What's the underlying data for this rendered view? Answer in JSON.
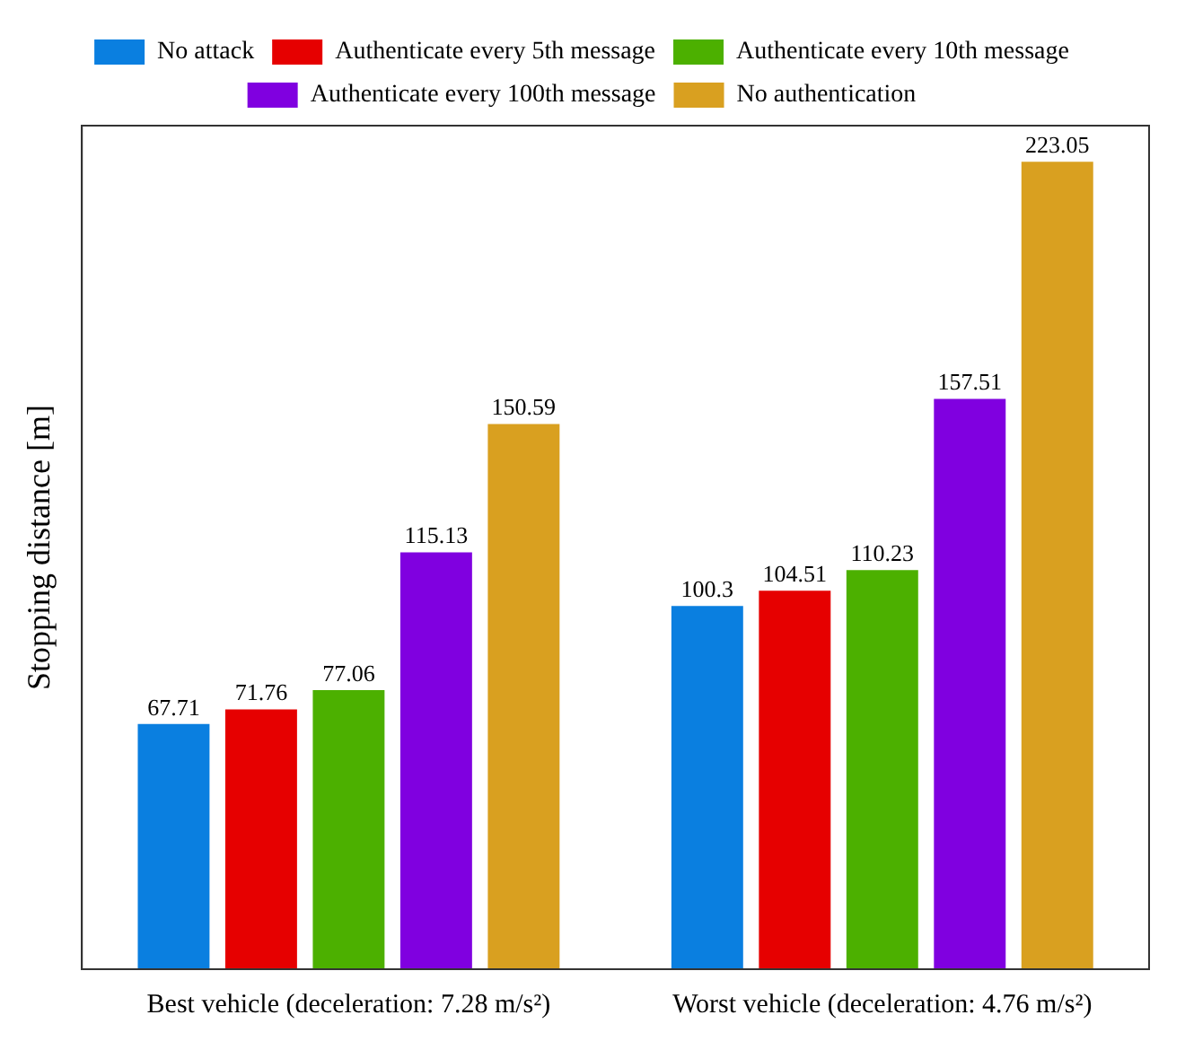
{
  "chart_data": {
    "type": "bar",
    "ylabel": "Stopping distance [m]",
    "categories": [
      "Best vehicle (deceleration: 7.28 m/s²)",
      "Worst vehicle (deceleration: 4.76 m/s²)"
    ],
    "series": [
      {
        "name": "No attack",
        "color": "#0a7fe0",
        "values": [
          67.71,
          100.3
        ]
      },
      {
        "name": "Authenticate every 5th message",
        "color": "#e60000",
        "values": [
          71.76,
          104.51
        ]
      },
      {
        "name": "Authenticate every 10th message",
        "color": "#4cb000",
        "values": [
          77.06,
          110.23
        ]
      },
      {
        "name": "Authenticate every 100th message",
        "color": "#8000e0",
        "values": [
          115.13,
          157.51
        ]
      },
      {
        "name": "No authentication",
        "color": "#d9a020",
        "values": [
          150.59,
          223.05
        ]
      }
    ],
    "ylim": [
      0,
      233
    ],
    "data_labels": true,
    "legend": "top",
    "grid": false,
    "tick_labels": "x"
  }
}
